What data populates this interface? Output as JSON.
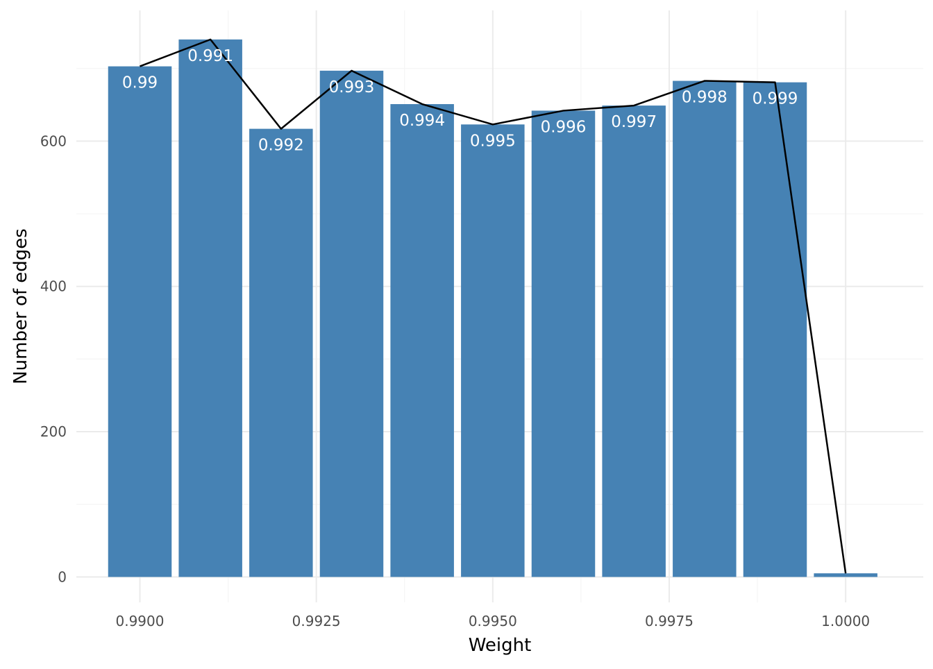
{
  "chart_data": {
    "type": "bar",
    "title": "",
    "xlabel": "Weight",
    "ylabel": "Number of edges",
    "x": [
      0.99,
      0.991,
      0.992,
      0.993,
      0.994,
      0.995,
      0.996,
      0.997,
      0.998,
      0.999,
      1.0
    ],
    "values": [
      703,
      740,
      617,
      697,
      651,
      623,
      642,
      649,
      683,
      681,
      5
    ],
    "bar_labels": [
      "0.99",
      "0.991",
      "0.992",
      "0.993",
      "0.994",
      "0.995",
      "0.996",
      "0.997",
      "0.998",
      "0.999",
      ""
    ],
    "line_values": [
      703,
      740,
      617,
      697,
      651,
      623,
      642,
      649,
      683,
      681,
      5
    ],
    "xlim": [
      0.9891,
      1.0011
    ],
    "ylim": [
      -35,
      780
    ],
    "x_ticks": [
      0.99,
      0.9925,
      0.995,
      0.9975,
      1.0
    ],
    "x_tick_labels": [
      "0.9900",
      "0.9925",
      "0.9950",
      "0.9975",
      "1.0000"
    ],
    "y_ticks": [
      0,
      200,
      400,
      600
    ],
    "y_tick_labels": [
      "0",
      "200",
      "400",
      "600"
    ],
    "grid": true,
    "colors": {
      "bar": "#4682b4",
      "line": "#000000",
      "grid_major": "#ebebeb",
      "grid_minor": "#f5f5f5",
      "label": "#ffffff"
    }
  }
}
